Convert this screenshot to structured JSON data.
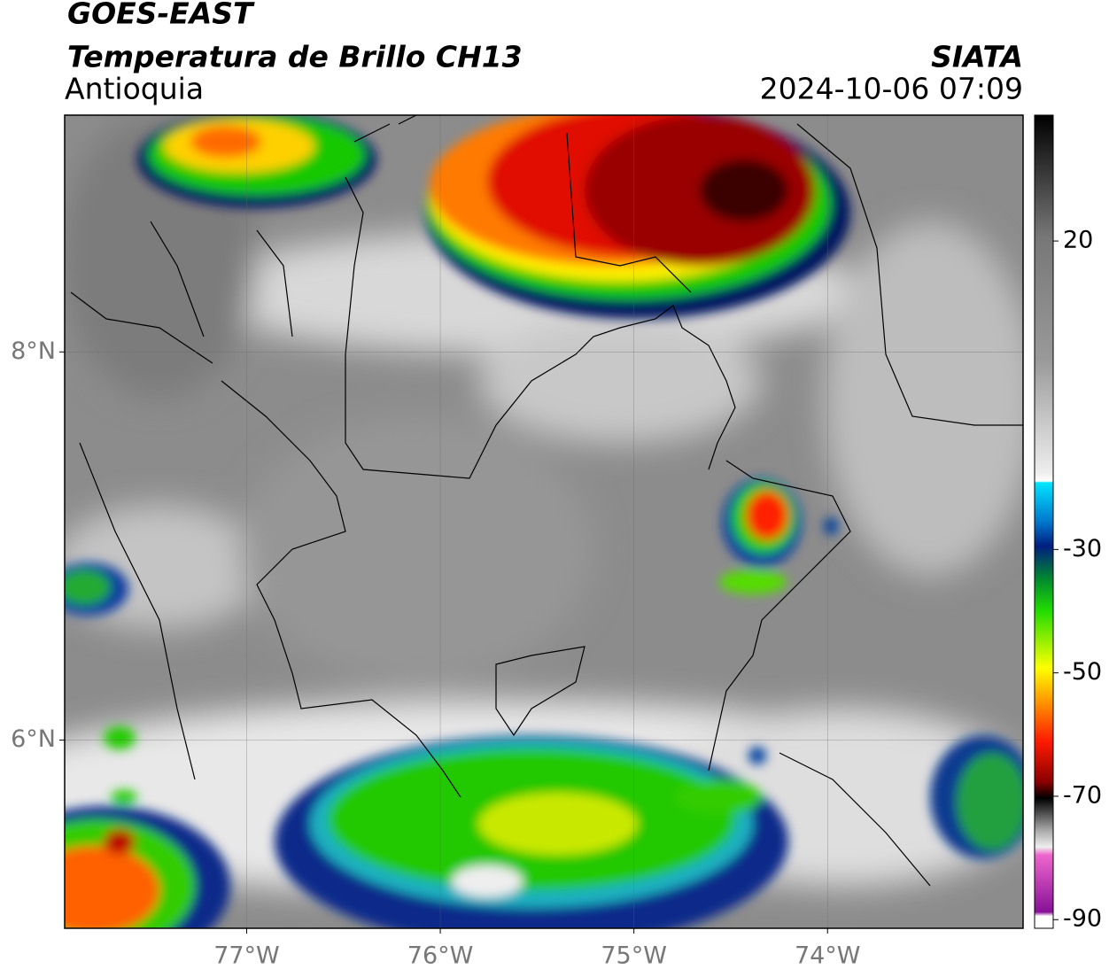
{
  "chart_data": {
    "type": "map",
    "title": "GOES-EAST",
    "subtitle": "Temperatura de Brillo CH13",
    "region": "Antioquia",
    "source": "SIATA",
    "date": "2024-10-06 07:09",
    "xlim": [
      -77.94,
      -72.99
    ],
    "ylim": [
      5.03,
      9.22
    ],
    "xticks": [
      {
        "value": -77,
        "label": "77°W"
      },
      {
        "value": -76,
        "label": "76°W"
      },
      {
        "value": -75,
        "label": "75°W"
      },
      {
        "value": -74,
        "label": "74°W"
      }
    ],
    "yticks": [
      {
        "value": 6,
        "label": "6°N"
      },
      {
        "value": 8,
        "label": "8°N"
      }
    ],
    "grid": true,
    "colorbar": {
      "lim": [
        -91.4,
        40.4
      ],
      "ticks": [
        20,
        -30,
        -50,
        -70,
        -90
      ]
    }
  }
}
